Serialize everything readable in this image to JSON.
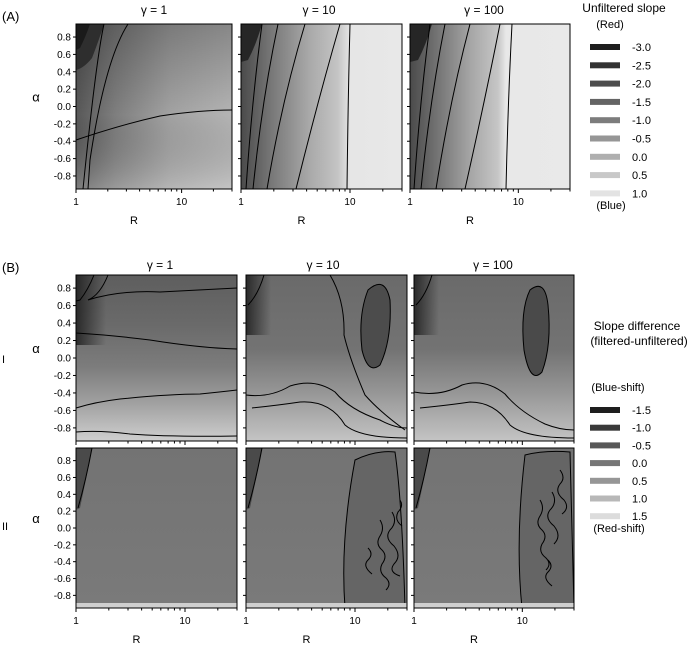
{
  "panel_labels": {
    "A": "(A)",
    "B": "(B)",
    "row_I": "I",
    "row_II": "II"
  },
  "column_titles": [
    "γ = 1",
    "γ = 10",
    "γ = 100"
  ],
  "axes": {
    "ylabel": "α",
    "xlabel": "R",
    "y_ticks": [
      "0.8",
      "0.6",
      "0.4",
      "0.2",
      "0.0",
      "-0.2",
      "-0.4",
      "-0.6",
      "-0.8"
    ],
    "y_tick_values": [
      0.8,
      0.6,
      0.4,
      0.2,
      0.0,
      -0.2,
      -0.4,
      -0.6,
      -0.8
    ],
    "x_ticks": [
      "1",
      "10"
    ],
    "x_tick_values": [
      1,
      10
    ],
    "xlim": [
      1,
      30
    ],
    "ylim": [
      -0.95,
      0.95
    ],
    "x_scale": "log"
  },
  "legend_A": {
    "title": "Unfiltered slope",
    "top_note": "(Red)",
    "bottom_note": "(Blue)",
    "labels": [
      "-3.0",
      "-2.5",
      "-2.0",
      "-1.5",
      "-1.0",
      "-0.5",
      "0.0",
      "0.5",
      "1.0"
    ],
    "colors": [
      "#1e1e1e",
      "#333333",
      "#4d4d4d",
      "#646464",
      "#7c7c7c",
      "#969696",
      "#afafaf",
      "#c8c8c8",
      "#e3e3e3"
    ]
  },
  "legend_B": {
    "title": "Slope difference",
    "subtitle": "(filtered-unfiltered)",
    "top_note": "(Blue-shift)",
    "bottom_note": "(Red-shift)",
    "labels": [
      "-1.5",
      "-1.0",
      "-0.5",
      "0.0",
      "0.5",
      "1.0",
      "1.5"
    ],
    "colors": [
      "#1e1e1e",
      "#3a3a3a",
      "#585858",
      "#767676",
      "#969696",
      "#b8b8b8",
      "#dcdcdc"
    ]
  },
  "chart_data": [
    {
      "type": "heatmap",
      "panel": "(A)",
      "title": "γ = 1",
      "xlabel": "R",
      "ylabel": "α",
      "scale": "Unfiltered slope"
    },
    {
      "type": "heatmap",
      "panel": "(A)",
      "title": "γ = 10",
      "xlabel": "R",
      "ylabel": "α",
      "scale": "Unfiltered slope"
    },
    {
      "type": "heatmap",
      "panel": "(A)",
      "title": "γ = 100",
      "xlabel": "R",
      "ylabel": "α",
      "scale": "Unfiltered slope"
    },
    {
      "type": "heatmap",
      "panel": "(B) I",
      "title": "γ = 1",
      "xlabel": "R",
      "ylabel": "α",
      "scale": "Slope difference"
    },
    {
      "type": "heatmap",
      "panel": "(B) I",
      "title": "γ = 10",
      "xlabel": "R",
      "ylabel": "α",
      "scale": "Slope difference"
    },
    {
      "type": "heatmap",
      "panel": "(B) I",
      "title": "γ = 100",
      "xlabel": "R",
      "ylabel": "α",
      "scale": "Slope difference"
    },
    {
      "type": "heatmap",
      "panel": "(B) II",
      "title": "γ = 1",
      "xlabel": "R",
      "ylabel": "α",
      "scale": "Slope difference"
    },
    {
      "type": "heatmap",
      "panel": "(B) II",
      "title": "γ = 10",
      "xlabel": "R",
      "ylabel": "α",
      "scale": "Slope difference"
    },
    {
      "type": "heatmap",
      "panel": "(B) II",
      "title": "γ = 100",
      "xlabel": "R",
      "ylabel": "α",
      "scale": "Slope difference"
    }
  ]
}
